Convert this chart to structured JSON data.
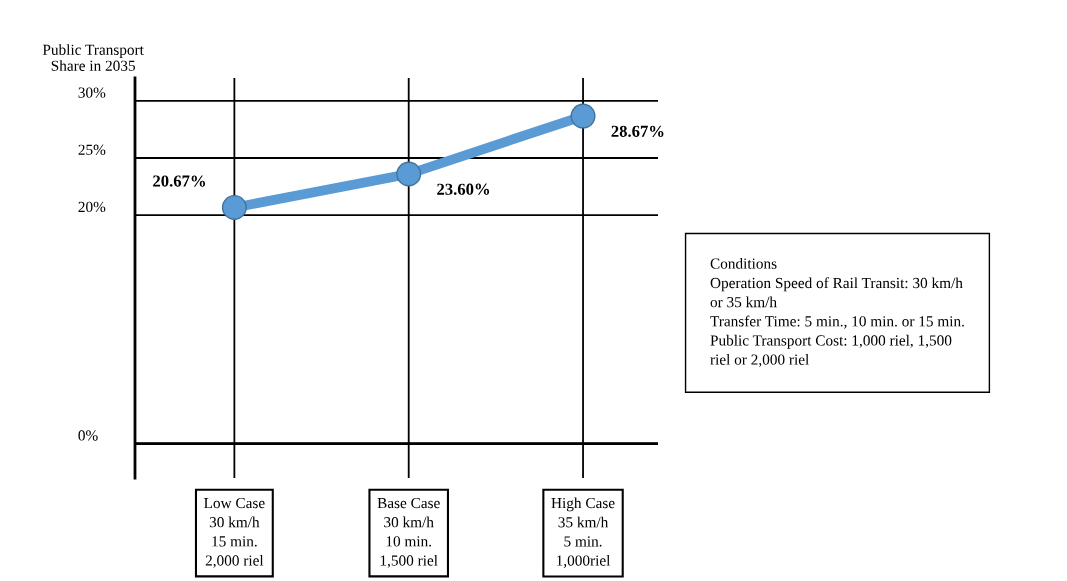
{
  "chart_data": {
    "type": "line",
    "ylabel": "Public Transport\nShare in 2035",
    "categories": [
      "Low Case\n30 km/h\n15 min.\n2,000 riel",
      "Base Case\n30 km/h\n10 min.\n1,500 riel",
      "High Case\n35 km/h\n5 min.\n1,000riel"
    ],
    "series": [
      {
        "color": "#5b9bd5",
        "values": [
          20.67,
          23.6,
          28.67
        ],
        "value_labels": [
          "20.67%",
          "23.60%",
          "28.67%"
        ]
      }
    ],
    "ylim": [
      -3,
      32
    ],
    "yticks": [
      {
        "value": 0,
        "label": "0%"
      },
      {
        "value": 20,
        "label": "20%"
      },
      {
        "value": 25,
        "label": "25%"
      },
      {
        "value": 30,
        "label": "30%"
      }
    ],
    "grid": true,
    "marker": "circle",
    "line_style": "solid",
    "annotations": [
      "Conditions\nOperation Speed of Rail Transit: 30 km/h\nor 35 km/h\nTransfer Time: 5 min., 10 min. or 15 min.\nPublic Transport Cost: 1,000 riel, 1,500\nriel or 2,000 riel"
    ]
  }
}
